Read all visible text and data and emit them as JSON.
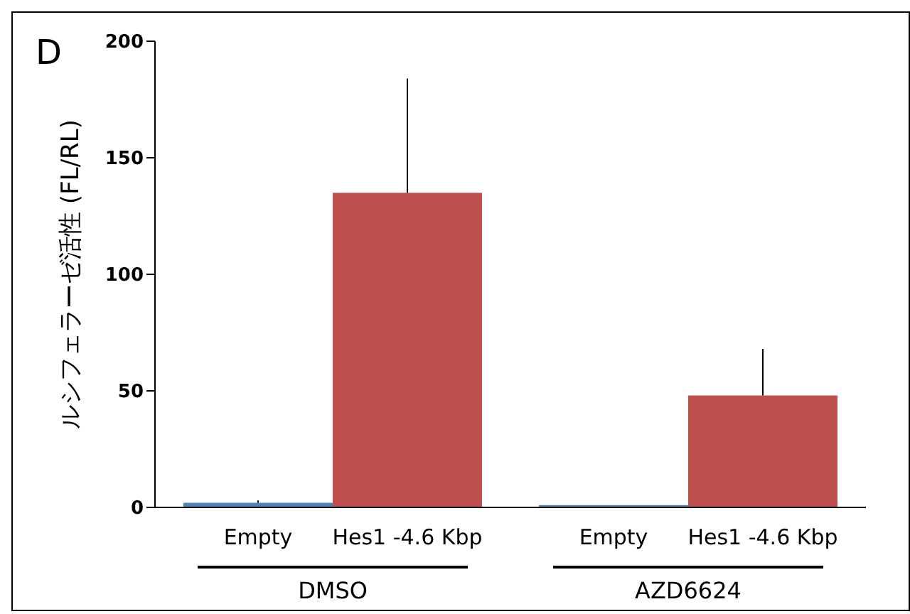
{
  "chart_data": {
    "type": "bar",
    "ylabel": "ルシフェラーゼ活性 (FL/RL)",
    "categories": [
      "DMSO",
      "AZD6624"
    ],
    "series": [
      {
        "name": "Empty",
        "color": "#4f81bd",
        "values": [
          2,
          1
        ],
        "errors": [
          [
            2,
            3
          ],
          null
        ]
      },
      {
        "name": "Hes1 -4.6 Kbp",
        "color": "#c0504d",
        "values": [
          135,
          48
        ],
        "errors": [
          [
            135,
            184
          ],
          [
            48,
            68
          ]
        ]
      }
    ],
    "ylim": [
      0,
      200
    ],
    "yticks": [
      0,
      50,
      100,
      150,
      200
    ],
    "grid": false,
    "legend": false,
    "annotations": [
      "D"
    ]
  }
}
